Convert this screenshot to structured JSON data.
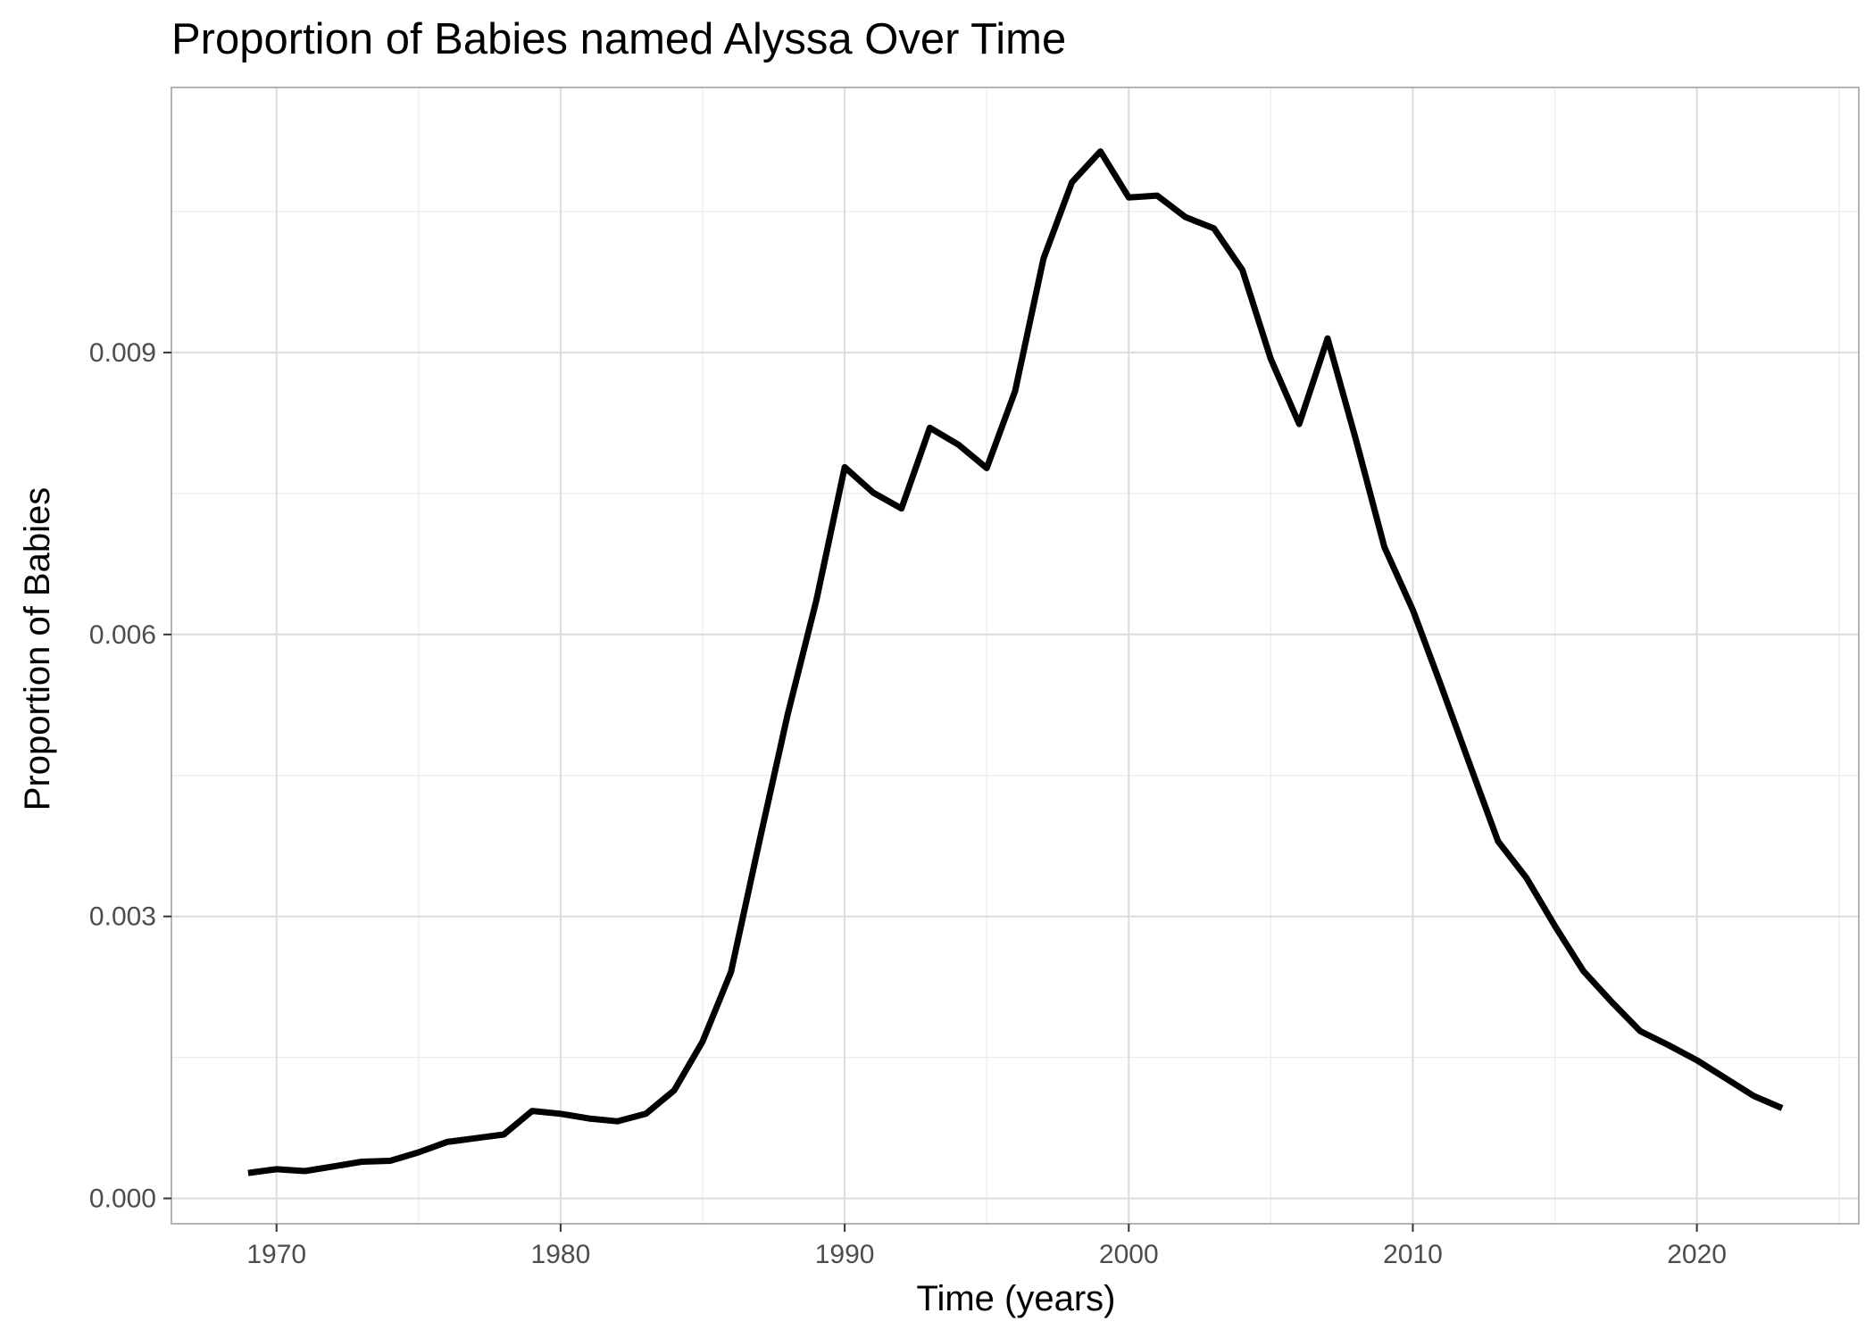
{
  "chart_data": {
    "type": "line",
    "title": "Proportion of Babies named Alyssa Over Time",
    "xlabel": "Time (years)",
    "ylabel": "Proportion of Babies",
    "xlim": [
      1966.3,
      1925.7
    ],
    "x_ticks": [
      "1970",
      "1980",
      "1990",
      "2000",
      "2010",
      "2020"
    ],
    "y_ticks": [
      "0.000",
      "0.003",
      "0.006",
      "0.009"
    ],
    "ylim": [
      -0.00027,
      0.01182
    ],
    "grid": true,
    "legend": "none",
    "series": [
      {
        "color": "#000000",
        "x": [
          1969,
          1970,
          1971,
          1972,
          1973,
          1974,
          1975,
          1976,
          1977,
          1978,
          1979,
          1980,
          1981,
          1982,
          1983,
          1984,
          1985,
          1986,
          1987,
          1988,
          1989,
          1990,
          1991,
          1992,
          1993,
          1994,
          1995,
          1996,
          1997,
          1998,
          1999,
          2000,
          2001,
          2002,
          2003,
          2004,
          2005,
          2006,
          2007,
          2008,
          2009,
          2010,
          2011,
          2012,
          2013,
          2014,
          2015,
          2016,
          2017,
          2018,
          2019,
          2020,
          2021,
          2022,
          2023
        ],
        "y": [
          0.00027,
          0.00031,
          0.00029,
          0.00034,
          0.00039,
          0.0004,
          0.00049,
          0.0006,
          0.00064,
          0.00068,
          0.00093,
          0.0009,
          0.00085,
          0.00082,
          0.0009,
          0.00115,
          0.00167,
          0.00241,
          0.0038,
          0.00516,
          0.00636,
          0.00778,
          0.00751,
          0.00734,
          0.0082,
          0.00802,
          0.00777,
          0.00859,
          0.01,
          0.01081,
          0.01114,
          0.01065,
          0.01067,
          0.01044,
          0.01032,
          0.00988,
          0.00893,
          0.00824,
          0.00915,
          0.00807,
          0.00693,
          0.00626,
          0.00545,
          0.00462,
          0.0038,
          0.00341,
          0.0029,
          0.00242,
          0.00209,
          0.00178,
          0.00163,
          0.00147,
          0.00128,
          0.00109,
          0.00096
        ]
      }
    ]
  }
}
